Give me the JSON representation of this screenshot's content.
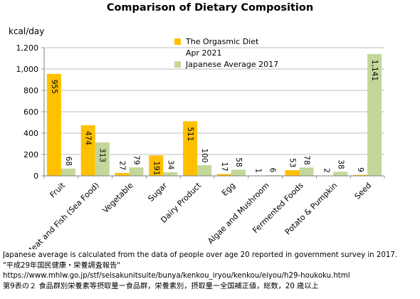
{
  "chart_data": {
    "type": "bar",
    "title": "Comparison of Dietary Composition",
    "ylabel": "kcal/day",
    "xlabel": "",
    "ylim": [
      0,
      1200
    ],
    "yticks": [
      0,
      200,
      400,
      600,
      800,
      1000,
      1200
    ],
    "ytick_labels": [
      "0",
      "200",
      "400",
      "600",
      "800",
      "1,000",
      "1,200"
    ],
    "grid": true,
    "legend_position": "top-right",
    "categories": [
      "Fruit",
      "Meat and Fish (Sea Food)",
      "Vegetable",
      "Sugar",
      "Dairy Product",
      "Egg",
      "Algae and Mushroom",
      "Fermented Foods",
      "Potato & Pumpkin",
      "Seed"
    ],
    "series": [
      {
        "name": "The Orgasmic Diet Apr 2021",
        "legend_lines": [
          "The Orgasmic Diet",
          "Apr 2021"
        ],
        "color": "#FFC000",
        "values": [
          955,
          474,
          27,
          191,
          511,
          17,
          1,
          53,
          2,
          9
        ],
        "labels": [
          "955",
          "474",
          "27",
          "191",
          "511",
          "17",
          "1",
          "53",
          "2",
          "9"
        ]
      },
      {
        "name": "Japanese Average 2017",
        "legend_lines": [
          "Japanese Average 2017"
        ],
        "color": "#C4D79B",
        "values": [
          68,
          313,
          79,
          34,
          100,
          58,
          6,
          78,
          38,
          1141
        ],
        "labels": [
          "68",
          "313",
          "79",
          "34",
          "100",
          "58",
          "6",
          "78",
          "38",
          "1,141"
        ]
      }
    ]
  },
  "notes": {
    "line1": "Japanese average is calculated from the data of people over age 20 reported in government survey in 2017.",
    "line2": "\"平成29年国民健康・栄養調査報告\"",
    "line3": "https://www.mhlw.go.jp/stf/seisakunitsuite/bunya/kenkou_iryou/kenkou/eiyou/h29-houkoku.html",
    "line4": "第9表の２ 食品群別栄養素等摂取量ー食品群，栄養素別，摂取量ー全国補正値，総数，20 歳以上"
  }
}
